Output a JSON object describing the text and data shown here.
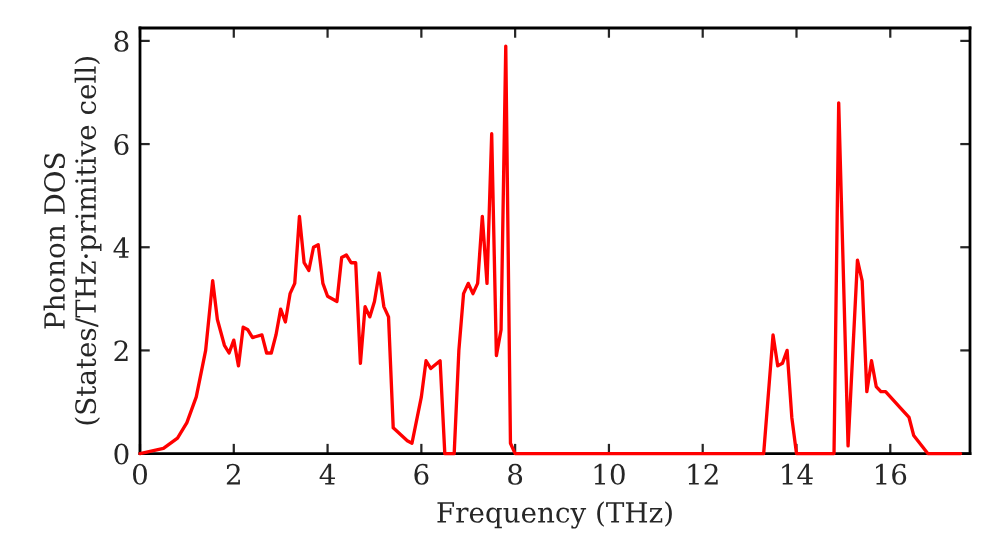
{
  "chart_data": {
    "type": "line",
    "xlabel": "Frequency (THz)",
    "ylabel": "Phonon DOS\n(States/THz·primitive cell)",
    "xlim": [
      0,
      17.7
    ],
    "ylim": [
      0,
      8.25
    ],
    "xticks": [
      0,
      2,
      4,
      6,
      8,
      10,
      12,
      14,
      16
    ],
    "yticks": [
      0,
      2,
      4,
      6,
      8
    ],
    "grid": false,
    "legend": false,
    "marker": "none",
    "line_style": "solid",
    "series": [
      {
        "color": "#ff0000",
        "x": [
          0,
          0.5,
          0.8,
          1.0,
          1.2,
          1.4,
          1.55,
          1.65,
          1.8,
          1.9,
          2.0,
          2.1,
          2.2,
          2.3,
          2.4,
          2.6,
          2.7,
          2.8,
          2.9,
          3.0,
          3.1,
          3.2,
          3.3,
          3.4,
          3.5,
          3.6,
          3.7,
          3.8,
          3.9,
          4.0,
          4.2,
          4.3,
          4.4,
          4.5,
          4.6,
          4.7,
          4.8,
          4.9,
          5.0,
          5.1,
          5.2,
          5.3,
          5.4,
          5.7,
          5.8,
          6.0,
          6.1,
          6.2,
          6.4,
          6.5,
          6.7,
          6.8,
          6.9,
          7.0,
          7.1,
          7.2,
          7.3,
          7.4,
          7.5,
          7.6,
          7.7,
          7.8,
          7.9,
          8.0,
          13.3,
          13.5,
          13.6,
          13.7,
          13.8,
          13.9,
          14.0,
          14.8,
          14.9,
          15.1,
          15.3,
          15.4,
          15.5,
          15.6,
          15.7,
          15.8,
          15.9,
          16.2,
          16.4,
          16.5,
          16.8,
          17.5
        ],
        "values": [
          0,
          0.1,
          0.3,
          0.6,
          1.1,
          2.0,
          3.35,
          2.6,
          2.1,
          1.95,
          2.2,
          1.7,
          2.45,
          2.4,
          2.25,
          2.3,
          1.95,
          1.95,
          2.3,
          2.8,
          2.55,
          3.1,
          3.3,
          4.6,
          3.7,
          3.55,
          4.0,
          4.05,
          3.3,
          3.05,
          2.95,
          3.8,
          3.85,
          3.7,
          3.7,
          1.75,
          2.85,
          2.65,
          2.95,
          3.5,
          2.85,
          2.65,
          0.5,
          0.25,
          0.2,
          1.1,
          1.8,
          1.65,
          1.8,
          0,
          0,
          2.0,
          3.1,
          3.3,
          3.1,
          3.3,
          4.6,
          3.3,
          6.2,
          1.9,
          2.4,
          7.9,
          0.2,
          0,
          0,
          2.3,
          1.7,
          1.75,
          2.0,
          0.7,
          0,
          0,
          6.8,
          0.15,
          3.75,
          3.35,
          1.2,
          1.8,
          1.3,
          1.2,
          1.2,
          0.9,
          0.7,
          0.35,
          0,
          0
        ]
      }
    ]
  }
}
